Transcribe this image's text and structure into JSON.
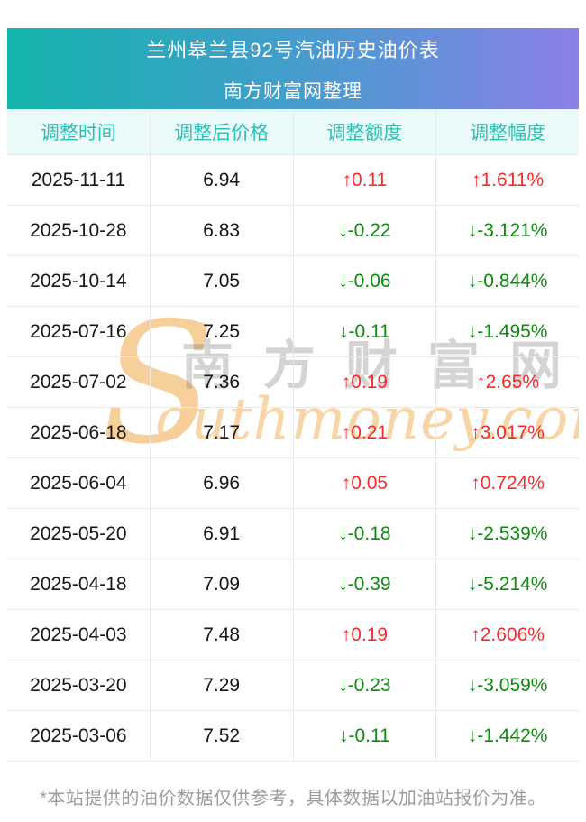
{
  "banner": {
    "title": "兰州皋兰县92号汽油历史油价表",
    "subtitle": "南方财富网整理"
  },
  "table": {
    "columns": [
      "调整时间",
      "调整后价格",
      "调整额度",
      "调整幅度"
    ],
    "rows": [
      {
        "date": "2025-11-11",
        "price": "6.94",
        "arrow": "↑",
        "amount": "0.11",
        "percent": "1.611%",
        "direction": "up"
      },
      {
        "date": "2025-10-28",
        "price": "6.83",
        "arrow": "↓",
        "amount": "-0.22",
        "percent": "-3.121%",
        "direction": "down"
      },
      {
        "date": "2025-10-14",
        "price": "7.05",
        "arrow": "↓",
        "amount": "-0.06",
        "percent": "-0.844%",
        "direction": "down"
      },
      {
        "date": "2025-07-16",
        "price": "7.25",
        "arrow": "↓",
        "amount": "-0.11",
        "percent": "-1.495%",
        "direction": "down"
      },
      {
        "date": "2025-07-02",
        "price": "7.36",
        "arrow": "↑",
        "amount": "0.19",
        "percent": "2.65%",
        "direction": "up"
      },
      {
        "date": "2025-06-18",
        "price": "7.17",
        "arrow": "↑",
        "amount": "0.21",
        "percent": "3.017%",
        "direction": "up"
      },
      {
        "date": "2025-06-04",
        "price": "6.96",
        "arrow": "↑",
        "amount": "0.05",
        "percent": "0.724%",
        "direction": "up"
      },
      {
        "date": "2025-05-20",
        "price": "6.91",
        "arrow": "↓",
        "amount": "-0.18",
        "percent": "-2.539%",
        "direction": "down"
      },
      {
        "date": "2025-04-18",
        "price": "7.09",
        "arrow": "↓",
        "amount": "-0.39",
        "percent": "-5.214%",
        "direction": "down"
      },
      {
        "date": "2025-04-03",
        "price": "7.48",
        "arrow": "↑",
        "amount": "0.19",
        "percent": "2.606%",
        "direction": "up"
      },
      {
        "date": "2025-03-20",
        "price": "7.29",
        "arrow": "↓",
        "amount": "-0.23",
        "percent": "-3.059%",
        "direction": "down"
      },
      {
        "date": "2025-03-06",
        "price": "7.52",
        "arrow": "↓",
        "amount": "-0.11",
        "percent": "-1.442%",
        "direction": "down"
      }
    ]
  },
  "watermark": {
    "brand_initial": "S",
    "brand_en_rest": "outhmoney.com",
    "brand_cn": "南方财富网"
  },
  "footer": {
    "note": "*本站提供的油价数据仅供参考，具体数据以加油站报价为准。"
  },
  "colors": {
    "g1": "#13b4ab",
    "g2": "#3f9fca",
    "g3": "#8b80e8",
    "header_bg": "#eafaf9",
    "header_text": "#2cc0b3",
    "up": "#f62b2b",
    "down": "#0e8a0e",
    "line": "#e8e8e8",
    "footer_text": "#9c9c9c"
  }
}
